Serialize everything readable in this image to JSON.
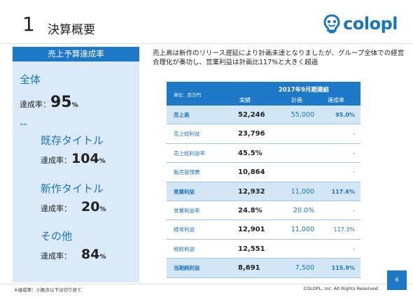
{
  "header": {
    "number": "1",
    "title": "決算概要",
    "logo_text": "colopl"
  },
  "left_panel": {
    "heading": "売上予算達成率",
    "total_label": "全体",
    "total_rate_prefix": "達成率：",
    "total_rate_value": "95",
    "separator": "--",
    "groups": [
      {
        "name": "既存タイトル",
        "rate_prefix": "達成率：",
        "rate_value": "104",
        "unit": "%"
      },
      {
        "name": "新作タイトル",
        "rate_prefix": "達成率：",
        "rate_value": "20",
        "unit": "%"
      },
      {
        "name": "その他",
        "rate_prefix": "達成率：",
        "rate_value": "84",
        "unit": "%"
      }
    ],
    "unit": "%"
  },
  "description": "売上高は新作のリリース遅延により計画未達となりましたが、グループ全体での経営合理化が奏功し、営業利益は計画比117%と大きく超過",
  "table": {
    "unit_label": "単位：百万円",
    "period": "2017年9月期連結",
    "columns": {
      "actual": "実績",
      "plan": "計画",
      "rate": "達成率"
    },
    "rows": [
      {
        "label": "売上高",
        "actual": "52,246",
        "plan": "55,000",
        "rate": "95.0%",
        "highlight": true
      },
      {
        "label": "売上総利益",
        "actual": "23,796",
        "plan": "",
        "rate": "-",
        "highlight": false
      },
      {
        "label": "売上総利益率",
        "actual": "45.5%",
        "plan": "",
        "rate": "-",
        "highlight": false
      },
      {
        "label": "販売管理費",
        "actual": "10,864",
        "plan": "",
        "rate": "-",
        "highlight": false
      },
      {
        "label": "営業利益",
        "actual": "12,932",
        "plan": "11,000",
        "rate": "117.6%",
        "highlight": true
      },
      {
        "label": "営業利益率",
        "actual": "24.8%",
        "plan": "20.0%",
        "rate": "-",
        "highlight": false
      },
      {
        "label": "経常利益",
        "actual": "12,901",
        "plan": "11,000",
        "rate": "117.3%",
        "highlight": false
      },
      {
        "label": "税前利益",
        "actual": "12,551",
        "plan": "",
        "rate": "-",
        "highlight": false
      },
      {
        "label": "当期純利益",
        "actual": "8,691",
        "plan": "7,500",
        "rate": "115.9%",
        "highlight": true
      }
    ]
  },
  "footer": {
    "footnote": "※達成率：小数点以下は切り捨て",
    "copyright": "COLOPL, Inc. All Rights Reserved",
    "page_number": "6"
  },
  "colors": {
    "accent": "#1e78c8",
    "panel_bg": "#daeaf8",
    "highlight_row": "#d2e6f6"
  }
}
